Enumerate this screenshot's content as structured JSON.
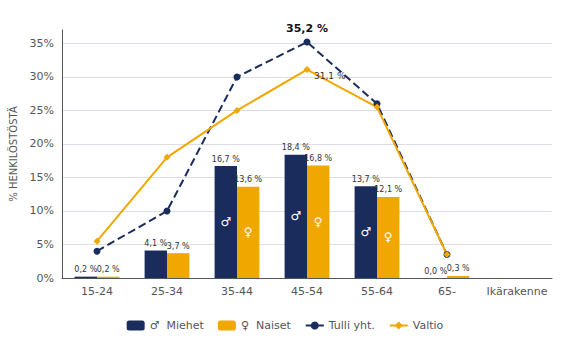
{
  "chart_data": {
    "type": "bar",
    "categories": [
      "15-24",
      "25-34",
      "35-44",
      "45-54",
      "55-64",
      "65-",
      "Ikärakenne"
    ],
    "ylabel": "% HENKILÖSTÖSTÄ",
    "ylim": [
      0,
      37
    ],
    "yticks": [
      {
        "value": 0,
        "label": "0%"
      },
      {
        "value": 5,
        "label": "5%"
      },
      {
        "value": 10,
        "label": "10%"
      },
      {
        "value": 15,
        "label": "15%"
      },
      {
        "value": 20,
        "label": "20%"
      },
      {
        "value": 25,
        "label": "25%"
      },
      {
        "value": 30,
        "label": "30%"
      },
      {
        "value": 35,
        "label": "35%"
      }
    ],
    "grid": true,
    "legend": "bottom",
    "data_labels": true,
    "series": [
      {
        "name": "♂  Miehet",
        "type": "bar",
        "color": "#1a2c5b",
        "values": [
          0.2,
          4.1,
          16.7,
          18.4,
          13.7,
          0.0,
          null
        ],
        "value_labels": [
          "0,2 %",
          "4,1 %",
          "16,7 %",
          "18,4 %",
          "13,7 %",
          "0,0 %",
          null
        ],
        "inner_labels": [
          null,
          null,
          "♂",
          "♂",
          "♂",
          null,
          null
        ]
      },
      {
        "name": "♀  Naiset",
        "type": "bar",
        "color": "#f0a800",
        "values": [
          0.2,
          3.7,
          13.6,
          16.8,
          12.1,
          0.3,
          null
        ],
        "value_labels": [
          "0,2 %",
          "3,7 %",
          "13,6 %",
          "16,8 %",
          "12,1 %",
          "0,3 %",
          null
        ],
        "inner_labels": [
          null,
          null,
          "♀",
          "♀",
          "♀",
          null,
          null
        ]
      },
      {
        "name": "Tulli yht.",
        "type": "line",
        "color": "#1a2c5b",
        "marker": "circle",
        "line_style": "dashed",
        "values": [
          4.0,
          10.0,
          30.0,
          35.2,
          26.0,
          3.5,
          null
        ]
      },
      {
        "name": "Valtio",
        "type": "line",
        "color": "#f0a800",
        "marker": "diamond",
        "line_style": "solid",
        "values": [
          5.5,
          18.0,
          25.0,
          31.1,
          25.5,
          3.5,
          null
        ]
      }
    ],
    "annotations": [
      {
        "text": "35,2 %",
        "series": "Tulli yht.",
        "x": "45-54",
        "y": 35.2
      },
      {
        "text": "31,1 %",
        "series": "Valtio",
        "x": "45-54",
        "y": 31.1
      }
    ]
  }
}
